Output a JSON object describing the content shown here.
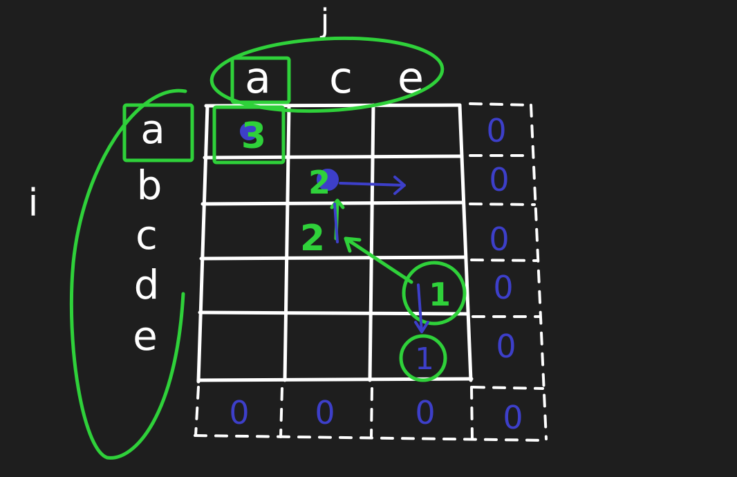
{
  "labels": {
    "j": "j",
    "i": "i"
  },
  "columns": [
    "a",
    "c",
    "e"
  ],
  "rows": [
    "a",
    "b",
    "c",
    "d",
    "e"
  ],
  "table": {
    "cell_r0c0": "3",
    "cell_r1c1": "2",
    "cell_r2c1": "2",
    "cell_r3c2": "1",
    "cell_r4c2": "1",
    "right_zeros": [
      "0",
      "0",
      "0",
      "0",
      "0"
    ],
    "bottom_zeros": [
      "0",
      "0",
      "0",
      "0"
    ]
  },
  "colors": {
    "background": "#1e1e1e",
    "chalk": "#ffffff",
    "green": "#2fd13a",
    "blue": "#3d3fc9"
  }
}
